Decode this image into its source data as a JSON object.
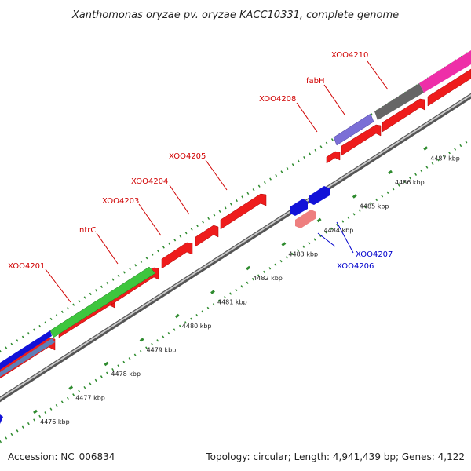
{
  "title": "Xanthomonas oryzae pv. oryzae KACC10331, complete genome",
  "footer": {
    "accession": "Accession: NC_006834",
    "stats": "Topology: circular; Length: 4,941,439 bp; Genes: 4,122"
  },
  "colors": {
    "cds_red": "#ee1c1c",
    "gene_green": "#3ec63e",
    "gene_blue": "#1212d8",
    "gene_grey": "#666666",
    "gene_purple": "#7b6fd6",
    "gene_magenta": "#ee2fa8",
    "gene_pink": "#ee7f7f",
    "label_red": "#d00000",
    "label_blue": "#0000cc",
    "tick_green": "#2e8b2e"
  },
  "ticks": [
    {
      "label": "4476 kbp"
    },
    {
      "label": "4477 kbp"
    },
    {
      "label": "4478 kbp"
    },
    {
      "label": "4479 kbp"
    },
    {
      "label": "4480 kbp"
    },
    {
      "label": "4481 kbp"
    },
    {
      "label": "4482 kbp"
    },
    {
      "label": "4483 kbp"
    },
    {
      "label": "4484 kbp"
    },
    {
      "label": "4485 kbp"
    },
    {
      "label": "4486 kbp"
    },
    {
      "label": "4487 kbp"
    }
  ],
  "gene_labels": {
    "forward": [
      "XOO4201",
      "ntrC",
      "XOO4203",
      "XOO4204",
      "XOO4205",
      "XOO4208",
      "fabH",
      "XOO4210"
    ],
    "reverse": [
      "XOO4206",
      "XOO4207"
    ]
  }
}
